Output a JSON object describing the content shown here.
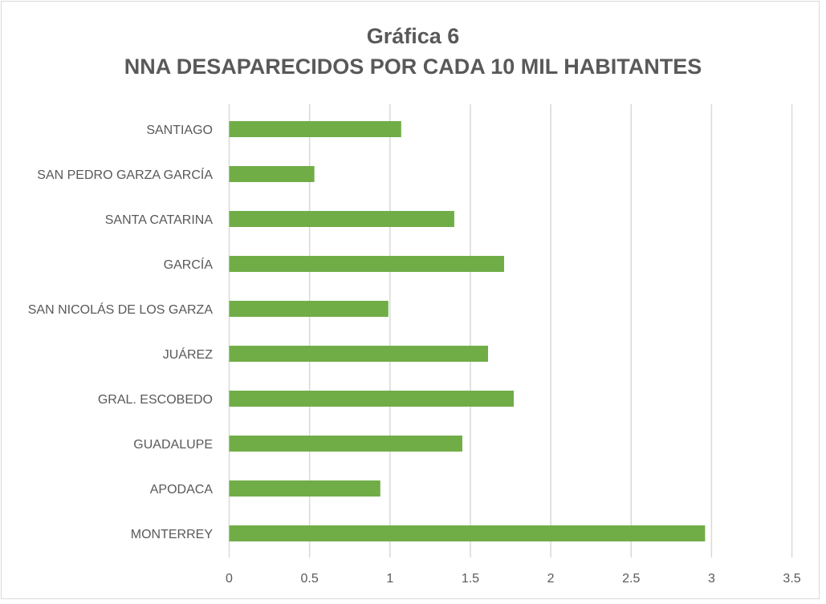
{
  "chart_data": {
    "type": "bar",
    "orientation": "horizontal",
    "title": "Gráfica 6",
    "subtitle": "NNA DESAPARECIDOS POR CADA 10 MIL HABITANTES",
    "categories": [
      "SANTIAGO",
      "SAN PEDRO GARZA GARCÍA",
      "SANTA CATARINA",
      "GARCÍA",
      "SAN NICOLÁS DE LOS GARZA",
      "JUÁREZ",
      "GRAL. ESCOBEDO",
      "GUADALUPE",
      "APODACA",
      "MONTERREY"
    ],
    "values": [
      1.07,
      0.53,
      1.4,
      1.71,
      0.99,
      1.61,
      1.77,
      1.45,
      0.94,
      2.96
    ],
    "xlim": [
      0,
      3.5
    ],
    "xticks": [
      "0",
      "0.5",
      "1",
      "1.5",
      "2",
      "2.5",
      "3",
      "3.5"
    ],
    "grid": true,
    "legend": "none",
    "bar_color": "#70ad47",
    "grid_color": "#d9d9d9"
  }
}
